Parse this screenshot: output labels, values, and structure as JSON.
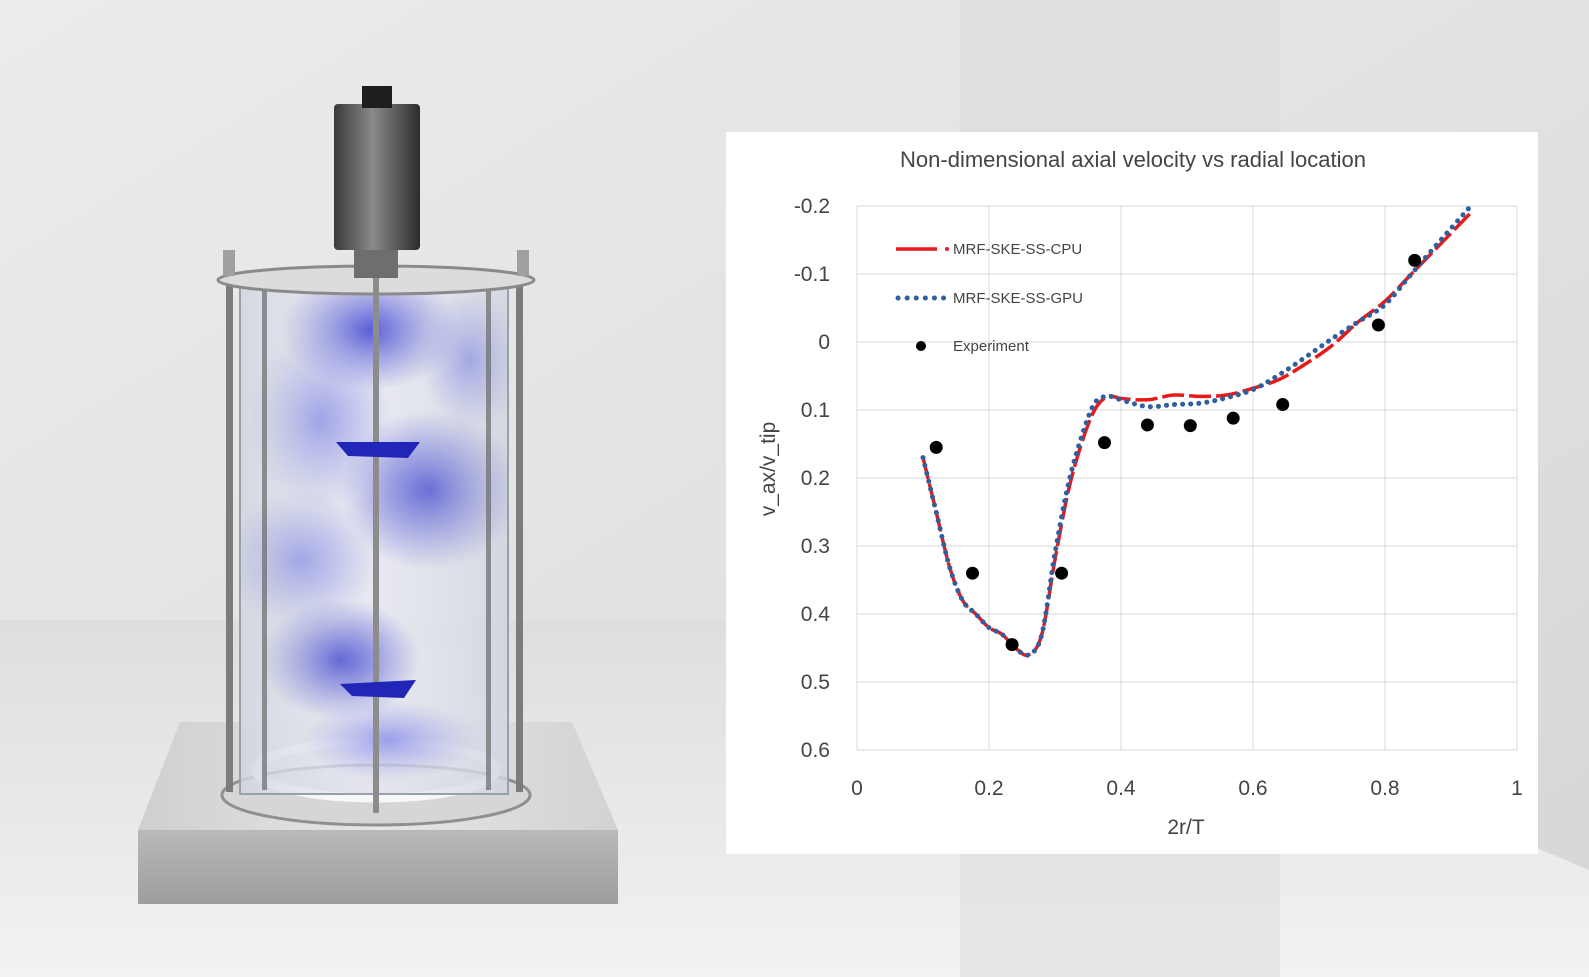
{
  "scene": {
    "illustration": "stirred-tank-mixing-vessel",
    "fluid_color": "#2a2fd0"
  },
  "chart_data": {
    "type": "line",
    "title": "Non-dimensional axial velocity vs radial location",
    "xlabel": "2r/T",
    "ylabel": "v_ax/v_tip",
    "xlim": [
      0,
      1
    ],
    "ylim": [
      -0.2,
      0.6
    ],
    "y_inverted": true,
    "x_ticks": [
      0,
      0.2,
      0.4,
      0.6,
      0.8,
      1
    ],
    "y_ticks": [
      -0.2,
      -0.1,
      0,
      0.1,
      0.2,
      0.3,
      0.4,
      0.5,
      0.6
    ],
    "x_tick_labels": [
      "0",
      "0.2",
      "0.4",
      "0.6",
      "0.8",
      "1"
    ],
    "y_tick_labels": [
      "-0.2",
      "-0.1",
      "0",
      "0.1",
      "0.2",
      "0.3",
      "0.4",
      "0.5",
      "0.6"
    ],
    "grid": true,
    "legend_position": "top-left",
    "series": [
      {
        "name": "MRF-SKE-SS-CPU",
        "style": "dashed-line",
        "color": "#e8191b",
        "x": [
          0.1,
          0.12,
          0.14,
          0.16,
          0.18,
          0.2,
          0.22,
          0.24,
          0.26,
          0.28,
          0.3,
          0.32,
          0.34,
          0.36,
          0.38,
          0.4,
          0.44,
          0.48,
          0.52,
          0.56,
          0.6,
          0.64,
          0.68,
          0.72,
          0.76,
          0.8,
          0.84,
          0.88,
          0.93
        ],
        "y": [
          0.17,
          0.25,
          0.33,
          0.38,
          0.4,
          0.42,
          0.43,
          0.45,
          0.46,
          0.43,
          0.32,
          0.22,
          0.15,
          0.1,
          0.08,
          0.083,
          0.085,
          0.078,
          0.08,
          0.078,
          0.068,
          0.055,
          0.032,
          0.005,
          -0.03,
          -0.06,
          -0.1,
          -0.14,
          -0.19
        ]
      },
      {
        "name": "MRF-SKE-SS-GPU",
        "style": "dotted-line",
        "color": "#2e5f9e",
        "x": [
          0.1,
          0.12,
          0.14,
          0.16,
          0.18,
          0.2,
          0.22,
          0.24,
          0.26,
          0.28,
          0.3,
          0.32,
          0.34,
          0.36,
          0.38,
          0.4,
          0.44,
          0.48,
          0.52,
          0.56,
          0.6,
          0.64,
          0.68,
          0.72,
          0.76,
          0.8,
          0.84,
          0.88,
          0.93
        ],
        "y": [
          0.17,
          0.25,
          0.33,
          0.38,
          0.4,
          0.42,
          0.43,
          0.45,
          0.46,
          0.43,
          0.31,
          0.21,
          0.14,
          0.09,
          0.08,
          0.085,
          0.095,
          0.092,
          0.09,
          0.082,
          0.07,
          0.048,
          0.022,
          -0.005,
          -0.03,
          -0.055,
          -0.1,
          -0.145,
          -0.2
        ]
      },
      {
        "name": "Experiment",
        "style": "markers",
        "color": "#000000",
        "x": [
          0.12,
          0.175,
          0.235,
          0.31,
          0.375,
          0.44,
          0.505,
          0.57,
          0.645,
          0.79,
          0.845
        ],
        "y": [
          0.155,
          0.34,
          0.445,
          0.34,
          0.148,
          0.122,
          0.123,
          0.112,
          0.092,
          -0.025,
          -0.12
        ]
      }
    ]
  }
}
